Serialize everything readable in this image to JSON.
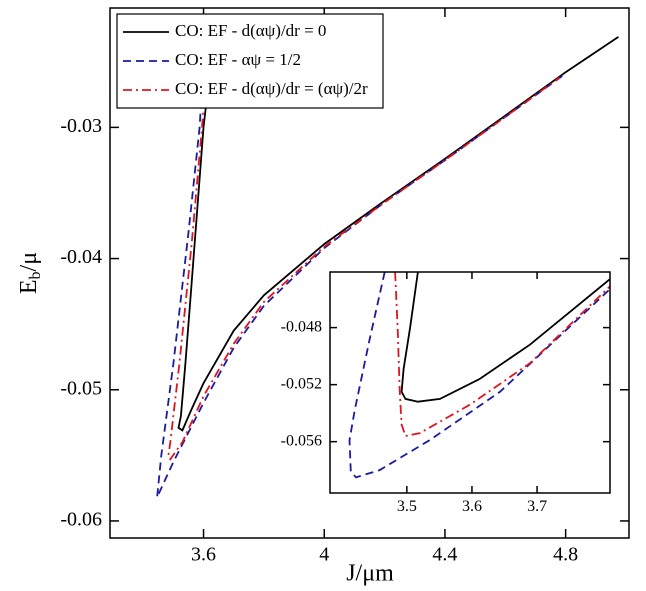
{
  "chart_data": [
    {
      "type": "line",
      "xlabel": "J/μm",
      "ylabel_base": "E",
      "ylabel_sub": "b",
      "ylabel_tail": "/μ",
      "xlim": [
        3.29,
        5.01
      ],
      "ylim": [
        -0.0613,
        -0.0209
      ],
      "xticks": [
        3.6,
        4,
        4.4,
        4.8
      ],
      "yticks": [
        -0.06,
        -0.05,
        -0.04,
        -0.03
      ],
      "legend": "upper-left",
      "series": [
        {
          "name": "CO: EF - d(αψ)/dr = 0",
          "color": "#000000",
          "dash": "solid",
          "x": [
            3.625,
            3.6,
            3.58,
            3.56,
            3.54,
            3.525,
            3.517,
            3.53,
            3.56,
            3.6,
            3.7,
            3.8,
            4.0,
            4.2,
            4.4,
            4.6,
            4.8,
            4.975
          ],
          "values": [
            -0.025,
            -0.03,
            -0.036,
            -0.042,
            -0.048,
            -0.052,
            -0.0529,
            -0.0531,
            -0.0515,
            -0.0495,
            -0.0455,
            -0.0428,
            -0.0389,
            -0.0356,
            -0.0324,
            -0.0291,
            -0.0258,
            -0.0231
          ]
        },
        {
          "name": "CO: EF - αψ = 1/2",
          "color": "#1a1aa0",
          "dash": "dashed",
          "x": [
            3.6,
            3.587,
            3.55,
            3.5,
            3.46,
            3.446,
            3.45,
            3.5,
            3.6,
            3.7,
            3.8,
            4.0,
            4.2,
            4.4,
            4.6,
            4.8
          ],
          "values": [
            -0.025,
            -0.03,
            -0.038,
            -0.048,
            -0.055,
            -0.0582,
            -0.058,
            -0.0555,
            -0.051,
            -0.0468,
            -0.0436,
            -0.0392,
            -0.0357,
            -0.0325,
            -0.0292,
            -0.0259
          ]
        },
        {
          "name": "CO: EF - d(αψ)/dr = (αψ)/2r",
          "color": "#e0141e",
          "dash": "dashdot",
          "x": [
            3.61,
            3.595,
            3.56,
            3.52,
            3.49,
            3.483,
            3.49,
            3.53,
            3.6,
            3.7,
            3.8,
            4.0,
            4.2,
            4.4,
            4.6,
            4.78
          ],
          "values": [
            -0.025,
            -0.03,
            -0.039,
            -0.048,
            -0.054,
            -0.0551,
            -0.0553,
            -0.054,
            -0.0505,
            -0.0465,
            -0.0433,
            -0.0391,
            -0.0357,
            -0.0325,
            -0.0292,
            -0.0262
          ]
        }
      ]
    },
    {
      "type": "line",
      "xlim": [
        3.382,
        3.812
      ],
      "ylim": [
        -0.0596,
        -0.0441
      ],
      "xticks": [
        3.5,
        3.6,
        3.7
      ],
      "yticks": [
        -0.056,
        -0.052,
        -0.048
      ],
      "series": [
        {
          "color": "#000000",
          "dash": "solid",
          "x": [
            3.517,
            3.505,
            3.495,
            3.492,
            3.498,
            3.517,
            3.551,
            3.612,
            3.689,
            3.812
          ],
          "values": [
            -0.0441,
            -0.048,
            -0.0509,
            -0.0525,
            -0.053,
            -0.0532,
            -0.053,
            -0.0516,
            -0.0492,
            -0.0446
          ]
        },
        {
          "color": "#1a1aa0",
          "dash": "dashed",
          "x": [
            3.466,
            3.443,
            3.42,
            3.412,
            3.414,
            3.422,
            3.458,
            3.535,
            3.643,
            3.812
          ],
          "values": [
            -0.0441,
            -0.0488,
            -0.0538,
            -0.0559,
            -0.0581,
            -0.0585,
            -0.058,
            -0.0559,
            -0.0525,
            -0.0453
          ]
        },
        {
          "color": "#e0141e",
          "dash": "dashdot",
          "x": [
            3.482,
            3.486,
            3.489,
            3.492,
            3.498,
            3.52,
            3.597,
            3.689,
            3.812
          ],
          "values": [
            -0.0441,
            -0.0481,
            -0.0524,
            -0.0548,
            -0.0556,
            -0.0554,
            -0.0534,
            -0.0505,
            -0.0451
          ]
        }
      ]
    }
  ]
}
